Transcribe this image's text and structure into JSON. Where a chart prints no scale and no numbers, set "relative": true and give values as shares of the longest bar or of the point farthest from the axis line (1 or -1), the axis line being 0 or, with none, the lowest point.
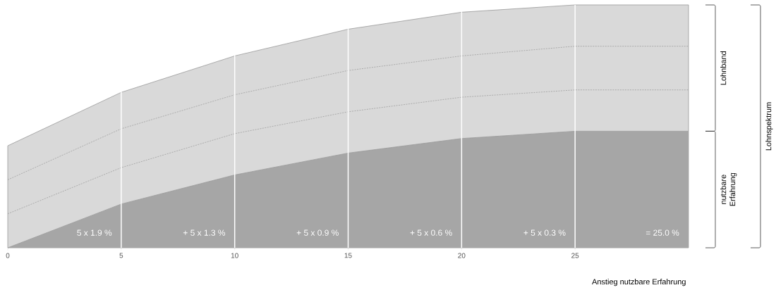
{
  "chart_data": {
    "type": "area",
    "relative": true,
    "xlabel": "Anstieg nutzbare Erfahrung",
    "x": [
      0,
      5,
      10,
      15,
      20,
      25,
      30
    ],
    "xlim": [
      0,
      30
    ],
    "xticks": [
      0,
      5,
      10,
      15,
      20,
      25
    ],
    "series": [
      {
        "color": "#a6a6a6",
        "values": [
          0,
          0.18,
          0.3,
          0.39,
          0.45,
          0.48,
          0.48
        ]
      },
      {
        "color": "#d9d9d9",
        "values": [
          0.42,
          0.64,
          0.79,
          0.9,
          0.97,
          1,
          1
        ]
      },
      {
        "type": "line",
        "color": "#8c8c8c",
        "line_style": "dashed",
        "values": [
          0.28,
          0.49,
          0.63,
          0.73,
          0.79,
          0.83,
          0.83
        ]
      },
      {
        "type": "line",
        "color": "#8c8c8c",
        "line_style": "dashed",
        "values": [
          0.14,
          0.33,
          0.47,
          0.56,
          0.62,
          0.65,
          0.65
        ]
      }
    ],
    "ref_lines": [
      {
        "axis": "x",
        "value": 5,
        "color": "#ffffff"
      },
      {
        "axis": "x",
        "value": 10,
        "color": "#ffffff"
      },
      {
        "axis": "x",
        "value": 15,
        "color": "#ffffff"
      },
      {
        "axis": "x",
        "value": 20,
        "color": "#ffffff"
      },
      {
        "axis": "x",
        "value": 25,
        "color": "#ffffff"
      }
    ],
    "annotations": [
      "5 x 1.9 %",
      "+   5 x 1.3 %",
      "+   5 x 0.9 %",
      "+   5 x 0.6 %",
      "+   5 x 0.3 %",
      "= 25.0 %",
      "Lohnband",
      "nutzbare Erfahrung",
      "Lohnspektrum"
    ]
  }
}
